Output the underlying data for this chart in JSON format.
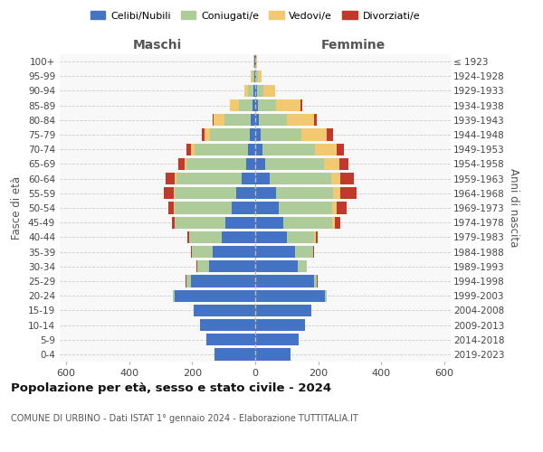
{
  "age_groups": [
    "0-4",
    "5-9",
    "10-14",
    "15-19",
    "20-24",
    "25-29",
    "30-34",
    "35-39",
    "40-44",
    "45-49",
    "50-54",
    "55-59",
    "60-64",
    "65-69",
    "70-74",
    "75-79",
    "80-84",
    "85-89",
    "90-94",
    "95-99",
    "100+"
  ],
  "birth_years": [
    "2019-2023",
    "2014-2018",
    "2009-2013",
    "2004-2008",
    "1999-2003",
    "1994-1998",
    "1989-1993",
    "1984-1988",
    "1979-1983",
    "1974-1978",
    "1969-1973",
    "1964-1968",
    "1959-1963",
    "1954-1958",
    "1949-1953",
    "1944-1948",
    "1939-1943",
    "1934-1938",
    "1929-1933",
    "1924-1928",
    "≤ 1923"
  ],
  "maschi_celibe": [
    130,
    155,
    175,
    195,
    255,
    205,
    145,
    135,
    105,
    95,
    75,
    60,
    42,
    28,
    22,
    18,
    14,
    8,
    5,
    3,
    2
  ],
  "maschi_coniugato": [
    0,
    0,
    0,
    0,
    5,
    12,
    38,
    65,
    105,
    160,
    180,
    195,
    208,
    190,
    170,
    125,
    85,
    45,
    18,
    7,
    2
  ],
  "maschi_vedovo": [
    0,
    0,
    0,
    0,
    1,
    2,
    0,
    0,
    0,
    1,
    2,
    3,
    5,
    7,
    13,
    18,
    32,
    28,
    12,
    4,
    1
  ],
  "maschi_divorziato": [
    0,
    0,
    0,
    0,
    0,
    2,
    3,
    5,
    5,
    9,
    18,
    32,
    28,
    18,
    13,
    9,
    4,
    0,
    0,
    0,
    0
  ],
  "femmine_nubile": [
    112,
    138,
    158,
    178,
    222,
    188,
    135,
    125,
    100,
    90,
    75,
    65,
    45,
    32,
    22,
    18,
    12,
    8,
    5,
    3,
    2
  ],
  "femmine_coniugata": [
    0,
    0,
    0,
    0,
    4,
    8,
    28,
    58,
    88,
    155,
    170,
    182,
    195,
    185,
    168,
    128,
    88,
    58,
    20,
    5,
    1
  ],
  "femmine_vedova": [
    0,
    0,
    0,
    0,
    0,
    0,
    0,
    1,
    3,
    8,
    12,
    22,
    30,
    50,
    68,
    82,
    88,
    78,
    38,
    12,
    2
  ],
  "femmine_divorziata": [
    0,
    0,
    0,
    0,
    1,
    2,
    2,
    4,
    8,
    18,
    32,
    52,
    42,
    28,
    22,
    18,
    8,
    4,
    0,
    0,
    0
  ],
  "colors": {
    "celibe": "#4472C4",
    "coniugato": "#ADCC9A",
    "vedovo": "#F2C870",
    "divorziato": "#C0392B"
  },
  "title": "Popolazione per età, sesso e stato civile - 2024",
  "subtitle": "COMUNE DI URBINO - Dati ISTAT 1° gennaio 2024 - Elaborazione TUTTITALIA.IT",
  "legend_labels": [
    "Celibi/Nubili",
    "Coniugati/e",
    "Vedovi/e",
    "Divorziati/e"
  ],
  "xlabel_maschi": "Maschi",
  "xlabel_femmine": "Femmine",
  "ylabel_left": "Fasce di età",
  "ylabel_right": "Anni di nascita",
  "xlim": 620,
  "bg_color": "#FFFFFF",
  "plot_bg_color": "#F8F8F8",
  "grid_color": "#CCCCCC"
}
